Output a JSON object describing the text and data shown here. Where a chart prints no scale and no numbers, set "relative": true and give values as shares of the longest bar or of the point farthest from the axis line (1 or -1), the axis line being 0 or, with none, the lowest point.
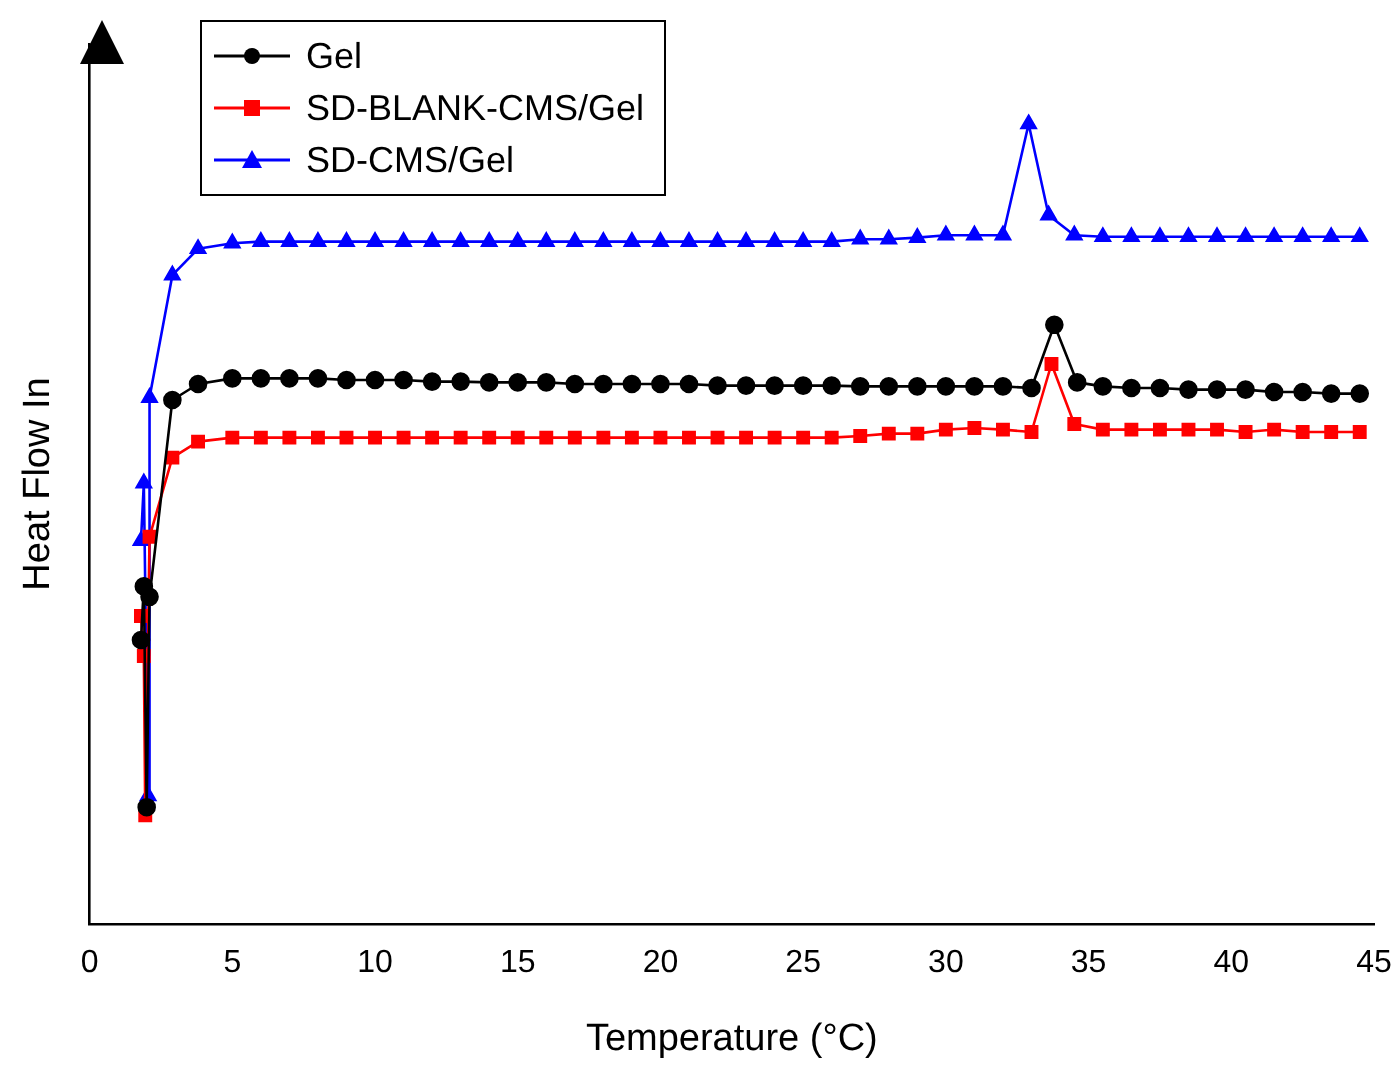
{
  "chart_data": {
    "type": "line",
    "relative": true,
    "xlabel": "Temperature (°C)",
    "ylabel": "Heat Flow In",
    "xlim": [
      0,
      45
    ],
    "xticks": [
      0,
      5,
      10,
      15,
      20,
      25,
      30,
      35,
      40,
      45
    ],
    "grid": false,
    "legend": "top left",
    "line_style": "solid",
    "series": [
      {
        "name": "Gel",
        "color": "#000000",
        "marker": "circle",
        "x": [
          1.8,
          1.9,
          2.0,
          2.1,
          2.9,
          3.8,
          5,
          6,
          7,
          8,
          9,
          10,
          11,
          12,
          13,
          14,
          15,
          16,
          17,
          18,
          19,
          20,
          21,
          22,
          23,
          24,
          25,
          26,
          27,
          28,
          29,
          30,
          31,
          32,
          33,
          33.8,
          34.6,
          35.5,
          36.5,
          37.5,
          38.5,
          39.5,
          40.5,
          41.5,
          42.5,
          43.5,
          44.5
        ],
        "values": [
          0.355,
          0.422,
          0.146,
          0.409,
          0.655,
          0.675,
          0.682,
          0.682,
          0.682,
          0.682,
          0.68,
          0.68,
          0.68,
          0.678,
          0.678,
          0.677,
          0.677,
          0.677,
          0.675,
          0.675,
          0.675,
          0.675,
          0.675,
          0.673,
          0.673,
          0.673,
          0.673,
          0.673,
          0.672,
          0.672,
          0.672,
          0.672,
          0.672,
          0.672,
          0.67,
          0.749,
          0.677,
          0.672,
          0.67,
          0.67,
          0.668,
          0.668,
          0.668,
          0.665,
          0.665,
          0.663,
          0.663
        ]
      },
      {
        "name": "SD-BLANK-CMS/Gel",
        "color": "#ff0000",
        "marker": "square",
        "x": [
          1.8,
          1.9,
          1.95,
          2.1,
          2.9,
          3.8,
          5,
          6,
          7,
          8,
          9,
          10,
          11,
          12,
          13,
          14,
          15,
          16,
          17,
          18,
          19,
          20,
          21,
          22,
          23,
          24,
          25,
          26,
          27,
          28,
          29,
          30,
          31,
          32,
          33,
          33.7,
          34.5,
          35.5,
          36.5,
          37.5,
          38.5,
          39.5,
          40.5,
          41.5,
          42.5,
          43.5,
          44.5
        ],
        "values": [
          0.385,
          0.335,
          0.136,
          0.484,
          0.583,
          0.603,
          0.608,
          0.608,
          0.608,
          0.608,
          0.608,
          0.608,
          0.608,
          0.608,
          0.608,
          0.608,
          0.608,
          0.608,
          0.608,
          0.608,
          0.608,
          0.608,
          0.608,
          0.608,
          0.608,
          0.608,
          0.608,
          0.608,
          0.61,
          0.613,
          0.613,
          0.618,
          0.62,
          0.618,
          0.615,
          0.7,
          0.625,
          0.618,
          0.618,
          0.618,
          0.618,
          0.618,
          0.615,
          0.618,
          0.615,
          0.615,
          0.615
        ]
      },
      {
        "name": "SD-CMS/Gel",
        "color": "#0000ff",
        "marker": "triangle",
        "x": [
          1.8,
          1.9,
          2.05,
          2.1,
          2.9,
          3.8,
          5,
          6,
          7,
          8,
          9,
          10,
          11,
          12,
          13,
          14,
          15,
          16,
          17,
          18,
          19,
          20,
          21,
          22,
          23,
          24,
          25,
          26,
          27,
          28,
          29,
          30,
          31,
          32,
          32.9,
          33.6,
          34.5,
          35.5,
          36.5,
          37.5,
          38.5,
          39.5,
          40.5,
          41.5,
          42.5,
          43.5,
          44.5
        ],
        "values": [
          0.479,
          0.551,
          0.16,
          0.658,
          0.811,
          0.844,
          0.851,
          0.853,
          0.853,
          0.853,
          0.853,
          0.853,
          0.853,
          0.853,
          0.853,
          0.853,
          0.853,
          0.853,
          0.853,
          0.853,
          0.853,
          0.853,
          0.853,
          0.853,
          0.853,
          0.853,
          0.853,
          0.853,
          0.856,
          0.856,
          0.858,
          0.861,
          0.861,
          0.861,
          1,
          0.886,
          0.861,
          0.859,
          0.859,
          0.859,
          0.859,
          0.859,
          0.859,
          0.859,
          0.859,
          0.859,
          0.859
        ]
      }
    ]
  }
}
